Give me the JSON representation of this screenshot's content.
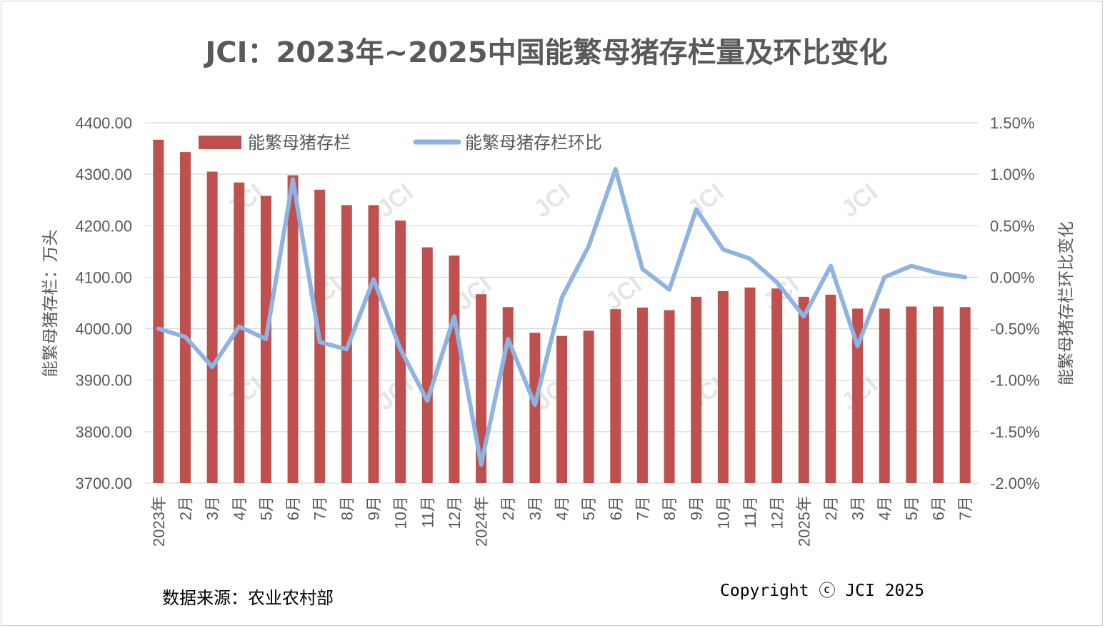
{
  "chart_data": {
    "type": "bar",
    "title": "JCI：2023年~2025中国能繁母猪存栏量及环比变化",
    "ylabel": "能繁母猪存栏：万头",
    "y2label": "能繁母猪存栏环比变化",
    "ylim": [
      3700,
      4400
    ],
    "y2lim": [
      -2.0,
      1.5
    ],
    "y_ticks": [
      "4400.00",
      "4300.00",
      "4200.00",
      "4100.00",
      "4000.00",
      "3900.00",
      "3800.00",
      "3700.00"
    ],
    "y2_ticks": [
      "1.50%",
      "1.00%",
      "0.50%",
      "0.00%",
      "-0.50%",
      "-1.00%",
      "-1.50%",
      "-2.00%"
    ],
    "grid": true,
    "legend_position": "top-left",
    "categories": [
      "2023年",
      "2月",
      "3月",
      "4月",
      "5月",
      "6月",
      "7月",
      "8月",
      "9月",
      "10月",
      "11月",
      "12月",
      "2024年",
      "2月",
      "3月",
      "4月",
      "5月",
      "6月",
      "7月",
      "8月",
      "9月",
      "10月",
      "11月",
      "12月",
      "2025年",
      "2月",
      "3月",
      "4月",
      "5月",
      "6月",
      "7月"
    ],
    "series": [
      {
        "name": "能繁母猪存栏",
        "type": "bar",
        "axis": "left",
        "color": "#c0504d",
        "values": [
          4367,
          4343,
          4305,
          4284,
          4258,
          4298,
          4270,
          4240,
          4240,
          4210,
          4158,
          4142,
          4067,
          4042,
          3992,
          3986,
          3996,
          4038,
          4041,
          4036,
          4062,
          4073,
          4080,
          4078,
          4062,
          4066,
          4039,
          4039,
          4043,
          4043,
          4042
        ]
      },
      {
        "name": "能繁母猪存栏环比",
        "type": "line",
        "axis": "right",
        "color": "#8eb4e3",
        "values": [
          -0.5,
          -0.58,
          -0.87,
          -0.48,
          -0.6,
          0.95,
          -0.63,
          -0.7,
          -0.02,
          -0.7,
          -1.2,
          -0.38,
          -1.82,
          -0.6,
          -1.24,
          -0.2,
          0.3,
          1.05,
          0.08,
          -0.12,
          0.66,
          0.27,
          0.18,
          -0.05,
          -0.38,
          0.11,
          -0.67,
          0.0,
          0.11,
          0.04,
          0.0
        ]
      }
    ]
  },
  "watermark": "JCI",
  "footer": {
    "source": "数据来源：农业农村部",
    "copyright": "Copyright ⓒ JCI 2025"
  }
}
